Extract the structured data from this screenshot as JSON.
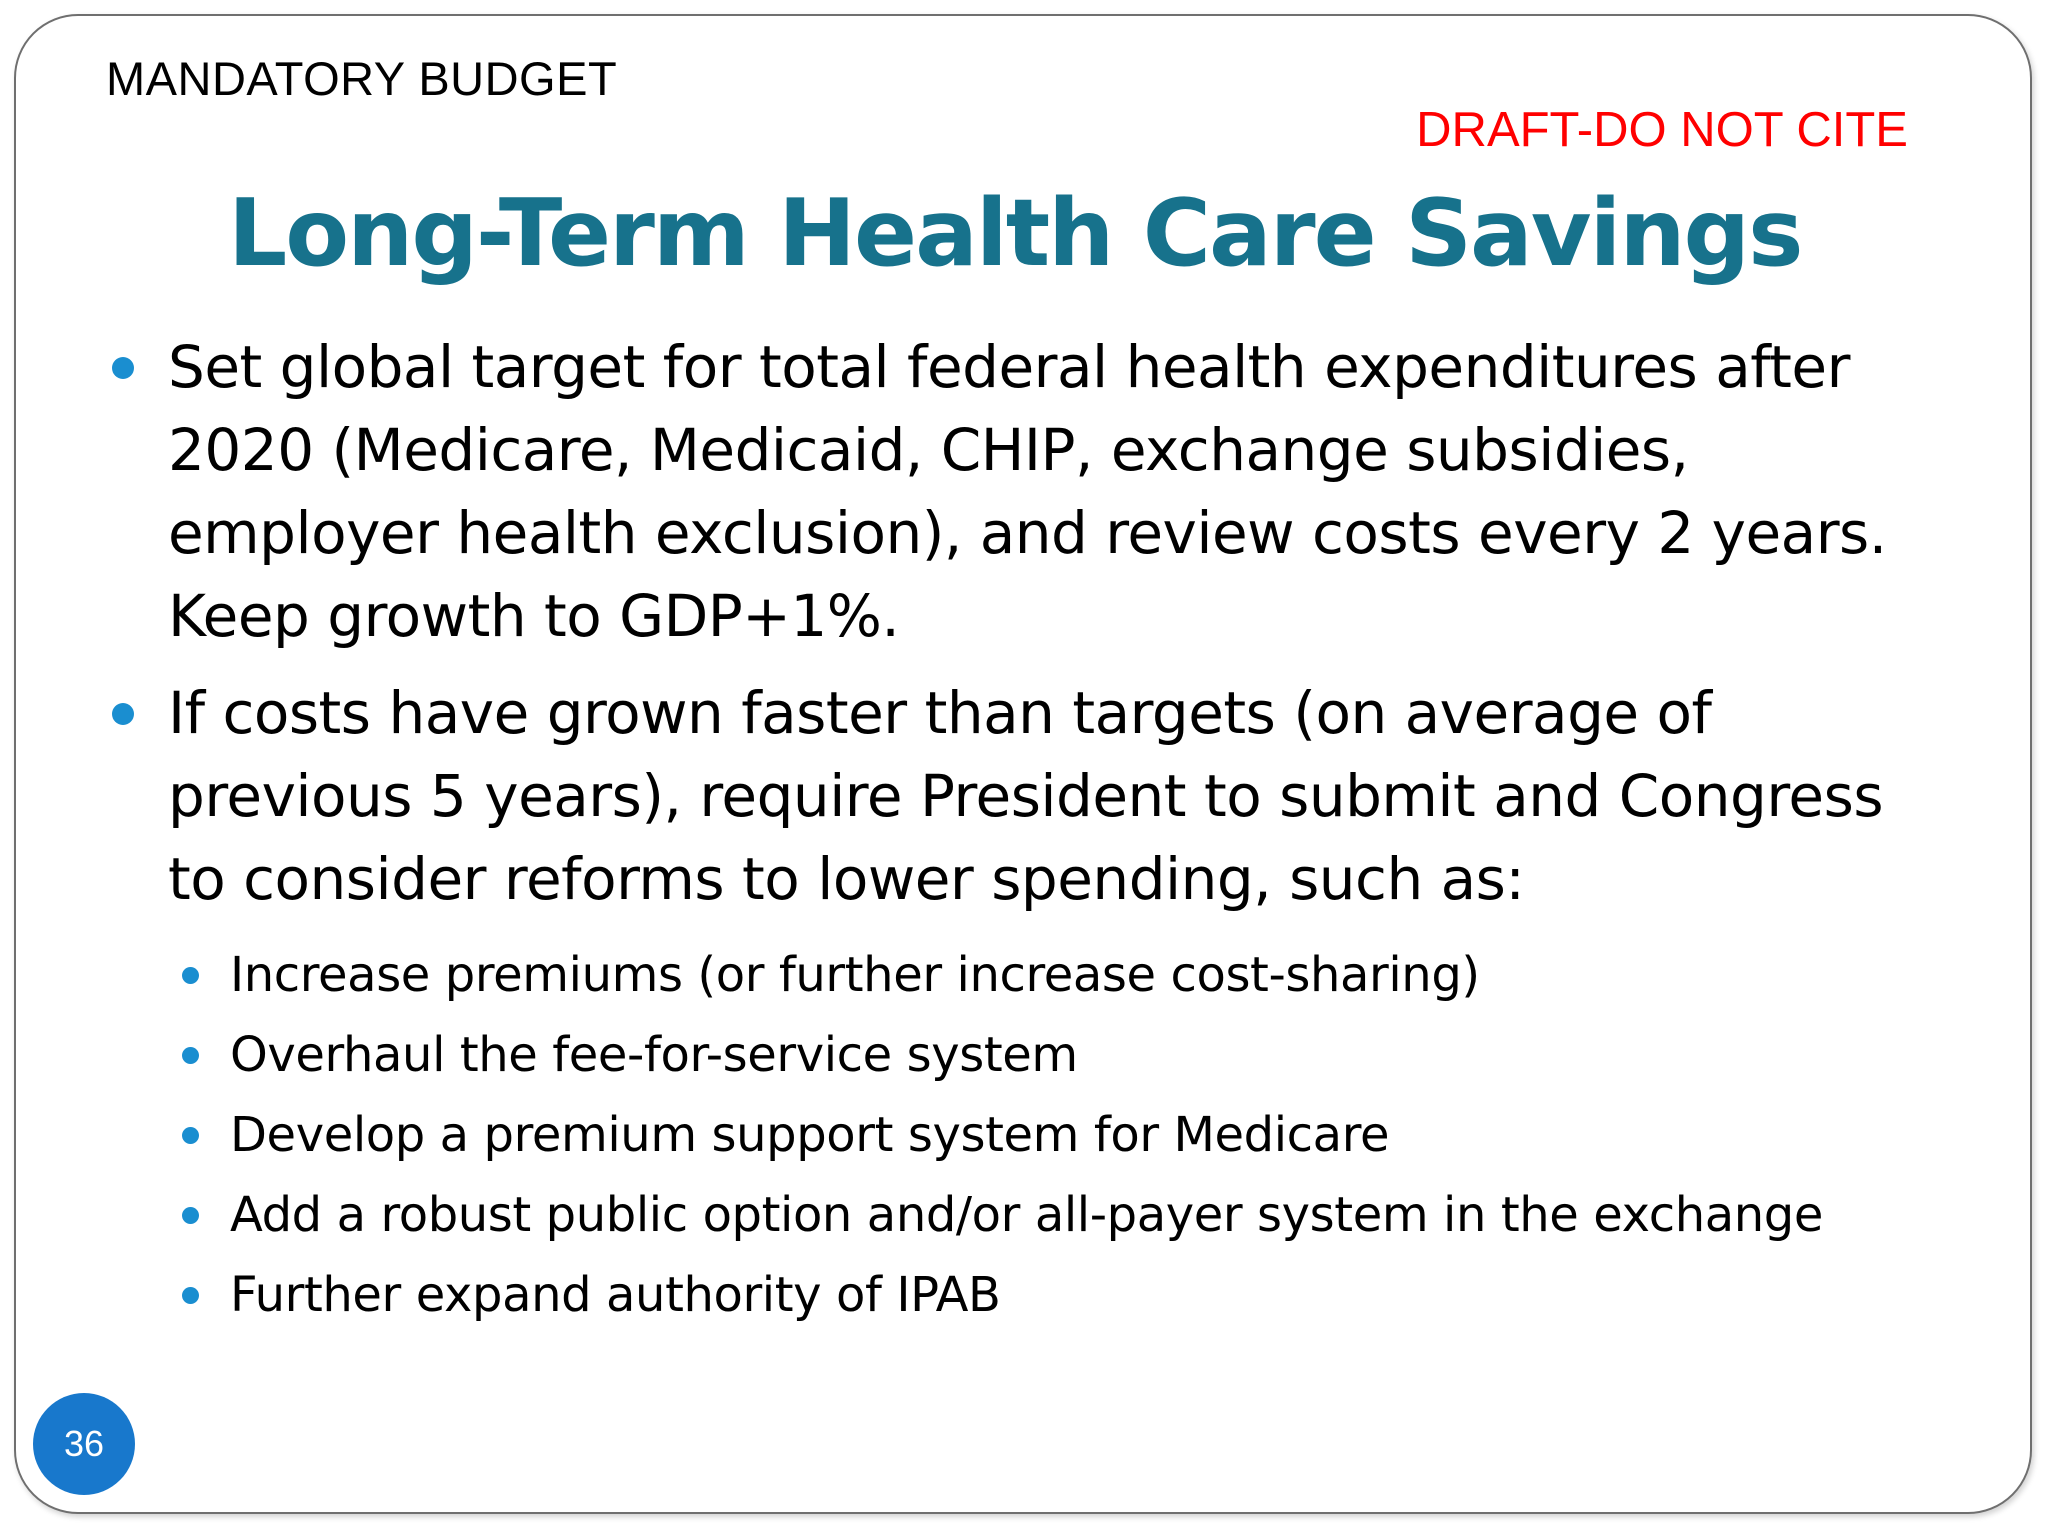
{
  "header": {
    "section_label": "MANDATORY BUDGET",
    "draft_notice": "DRAFT-DO NOT CITE"
  },
  "slide": {
    "title": "Long-Term Health Care Savings",
    "page_number": "36"
  },
  "bullets": [
    {
      "text": "Set global target for total federal health expenditures after 2020 (Medicare, Medicaid, CHIP, exchange subsidies, employer health exclusion), and review costs every 2 years. Keep growth to GDP+1%."
    },
    {
      "text": "If costs have grown faster than targets (on average of previous 5 years), require President to submit and Congress to consider reforms to lower spending, such as:",
      "sub_bullets": [
        "Increase premiums (or further increase cost-sharing)",
        "Overhaul the fee-for-service system",
        "Develop a premium support system for Medicare",
        "Add a robust public option and/or all-payer system in the exchange",
        "Further expand authority of IPAB"
      ]
    }
  ],
  "colors": {
    "title": "#17728c",
    "bullet": "#1a8ed0",
    "draft": "#ff0000",
    "page_badge": "#1878cc"
  }
}
